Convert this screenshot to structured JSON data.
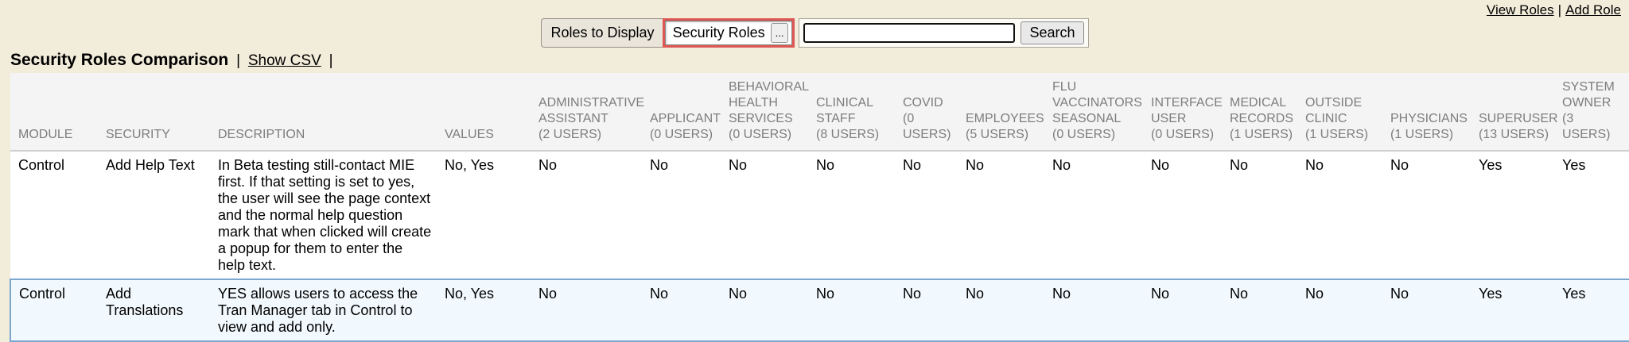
{
  "top_links": {
    "view_roles": "View Roles",
    "separator": "|",
    "add_role": "Add Role"
  },
  "toolbar": {
    "roles_to_display_label": "Roles to Display",
    "roles_select_value": "Security Roles",
    "roles_select_button_label": "...",
    "search_input_value": "",
    "search_button_label": "Search"
  },
  "heading": {
    "title": "Security Roles Comparison",
    "separator": "|",
    "show_csv_label": "Show CSV",
    "separator_trailing": "|"
  },
  "table": {
    "fixed_columns": [
      {
        "id": "module",
        "label": "MODULE"
      },
      {
        "id": "security",
        "label": "SECURITY"
      },
      {
        "id": "description",
        "label": "DESCRIPTION"
      },
      {
        "id": "values",
        "label": "VALUES"
      }
    ],
    "role_columns": [
      {
        "id": "administrative-assistant",
        "name": "ADMINISTRATIVE ASSISTANT",
        "users": "(2 USERS)"
      },
      {
        "id": "applicant",
        "name": "APPLICANT",
        "users": "(0 USERS)"
      },
      {
        "id": "behavioral-health-services",
        "name": "BEHAVIORAL HEALTH SERVICES",
        "users": "(0 USERS)"
      },
      {
        "id": "clinical-staff",
        "name": "CLINICAL STAFF",
        "users": "(8 USERS)"
      },
      {
        "id": "covid",
        "name": "COVID",
        "users": "(0 USERS)"
      },
      {
        "id": "employees",
        "name": "EMPLOYEES",
        "users": "(5 USERS)"
      },
      {
        "id": "flu-vaccinators-seasonal",
        "name": "FLU VACCINATORS SEASONAL",
        "users": "(0 USERS)"
      },
      {
        "id": "interface-user",
        "name": "INTERFACE USER",
        "users": "(0 USERS)"
      },
      {
        "id": "medical-records",
        "name": "MEDICAL RECORDS",
        "users": "(1 USERS)"
      },
      {
        "id": "outside-clinic",
        "name": "OUTSIDE CLINIC",
        "users": "(1 USERS)"
      },
      {
        "id": "physicians",
        "name": "PHYSICIANS",
        "users": "(1 USERS)"
      },
      {
        "id": "superuser",
        "name": "SUPERUSER",
        "users": "(13 USERS)"
      },
      {
        "id": "system-owner",
        "name": "SYSTEM OWNER",
        "users": "(3 USERS)"
      }
    ],
    "rows": [
      {
        "module": "Control",
        "security": "Add Help Text",
        "description": "In Beta testing still-contact MIE first. If that setting is set to yes, the user will see the page context and the normal help question mark that when clicked will create a popup for them to enter the help text.",
        "values": "No, Yes",
        "role_values": [
          "No",
          "No",
          "No",
          "No",
          "No",
          "No",
          "No",
          "No",
          "No",
          "No",
          "No",
          "Yes",
          "Yes"
        ],
        "highlighted": false
      },
      {
        "module": "Control",
        "security": "Add Translations",
        "description": "YES allows users to access the Tran Manager tab in Control to view and add only.",
        "values": "No, Yes",
        "role_values": [
          "No",
          "No",
          "No",
          "No",
          "No",
          "No",
          "No",
          "No",
          "No",
          "No",
          "No",
          "Yes",
          "Yes"
        ],
        "highlighted": true
      }
    ]
  },
  "colors": {
    "page_background": "#f2ecda",
    "table_header_background": "#f4f4f4",
    "table_header_text": "#7d7d7d",
    "highlight_row_background": "#f2f9fe",
    "highlight_row_border": "#7ba7cf",
    "attention_border": "#df5755"
  }
}
